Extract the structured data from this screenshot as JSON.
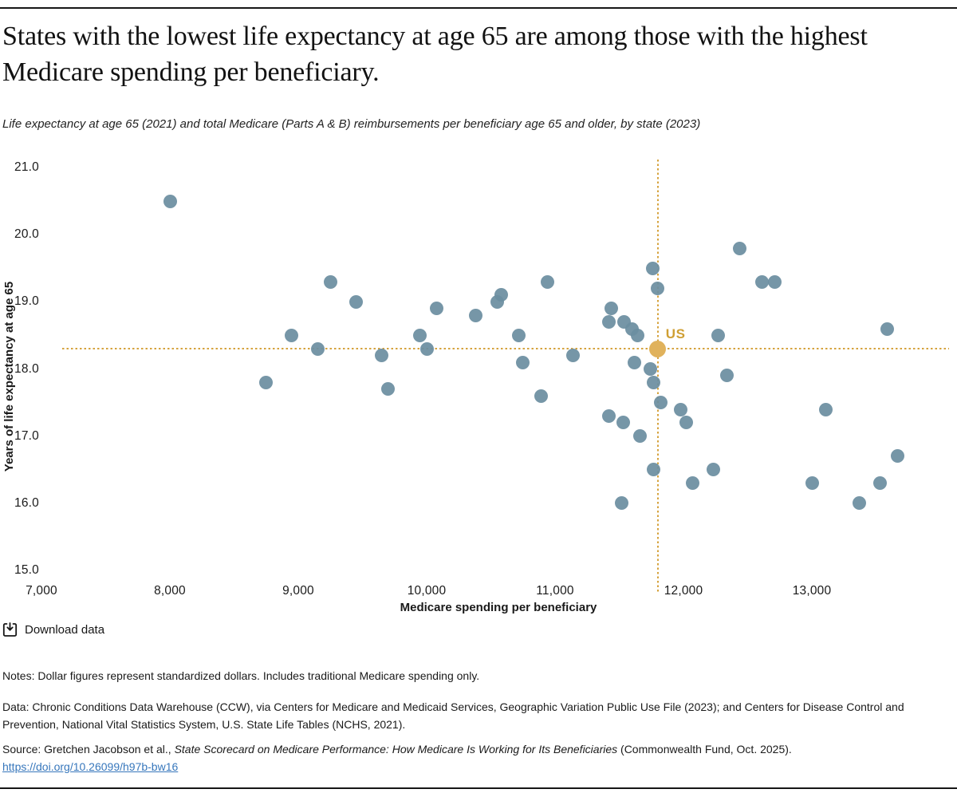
{
  "header": {
    "title": "States with the lowest life expectancy at age 65 are among those with the highest Medicare spending per beneficiary.",
    "subtitle": "Life expectancy at age 65 (2021) and total Medicare (Parts A & B) reimbursements per beneficiary age 65 and older, by state (2023)"
  },
  "chart_data": {
    "type": "scatter",
    "title": "States with the lowest life expectancy at age 65 are among those with the highest Medicare spending per beneficiary.",
    "xlabel": "Medicare spending per beneficiary",
    "ylabel": "Years of life expectancy at age 65",
    "xlim": [
      7000,
      14000
    ],
    "ylim": [
      15.0,
      21.0
    ],
    "grid": false,
    "x_ticks": [
      7000,
      8000,
      9000,
      10000,
      11000,
      12000,
      13000
    ],
    "x_tick_labels": [
      "7,000",
      "8,000",
      "9,000",
      "10,000",
      "11,000",
      "12,000",
      "13,000"
    ],
    "y_ticks": [
      15,
      16,
      17,
      18,
      19,
      20,
      21
    ],
    "y_tick_labels": [
      "15.0",
      "16.0",
      "17.0",
      "18.0",
      "19.0",
      "20.0",
      "21.0"
    ],
    "series_name": "States",
    "points": [
      [
        8000,
        20.5
      ],
      [
        8750,
        17.8
      ],
      [
        8950,
        18.5
      ],
      [
        9150,
        18.3
      ],
      [
        9250,
        19.3
      ],
      [
        9450,
        19.0
      ],
      [
        9650,
        18.2
      ],
      [
        9700,
        17.7
      ],
      [
        9950,
        18.5
      ],
      [
        10000,
        18.3
      ],
      [
        10080,
        18.9
      ],
      [
        10380,
        18.8
      ],
      [
        10550,
        19.0
      ],
      [
        10580,
        19.1
      ],
      [
        10720,
        18.5
      ],
      [
        10750,
        18.1
      ],
      [
        10890,
        17.6
      ],
      [
        10940,
        19.3
      ],
      [
        11140,
        18.2
      ],
      [
        11420,
        18.7
      ],
      [
        11420,
        17.3
      ],
      [
        11440,
        18.9
      ],
      [
        11520,
        16.0
      ],
      [
        11530,
        17.2
      ],
      [
        11540,
        18.7
      ],
      [
        11600,
        18.6
      ],
      [
        11620,
        18.1
      ],
      [
        11640,
        18.5
      ],
      [
        11660,
        17.0
      ],
      [
        11740,
        18.0
      ],
      [
        11760,
        19.5
      ],
      [
        11770,
        17.8
      ],
      [
        11770,
        16.5
      ],
      [
        11800,
        19.2
      ],
      [
        11820,
        17.5
      ],
      [
        11980,
        17.4
      ],
      [
        12020,
        17.2
      ],
      [
        12070,
        16.3
      ],
      [
        12230,
        16.5
      ],
      [
        12270,
        18.5
      ],
      [
        12340,
        17.9
      ],
      [
        12440,
        19.8
      ],
      [
        12610,
        19.3
      ],
      [
        12710,
        19.3
      ],
      [
        13000,
        16.3
      ],
      [
        13110,
        17.4
      ],
      [
        13370,
        16.0
      ],
      [
        13530,
        16.3
      ],
      [
        13590,
        18.6
      ],
      [
        13670,
        16.7
      ]
    ],
    "us_reference": {
      "label": "US",
      "x": 11800,
      "y": 18.3
    },
    "colors": {
      "point": "#6c8ea0",
      "us_marker": "#e0b25c",
      "reference_line": "#d6a33e",
      "us_label": "#cf9f33"
    },
    "legend_position": "none"
  },
  "footer": {
    "download_label": "Download data",
    "notes": "Notes: Dollar figures represent standardized dollars. Includes traditional Medicare spending only.",
    "data_note": "Data: Chronic Conditions Data Warehouse (CCW), via Centers for Medicare and Medicaid Services, Geographic Variation Public Use File (2023); and Centers for Disease Control and Prevention, National Vital Statistics System, U.S. State Life Tables (NCHS, 2021).",
    "source_prefix": "Source: Gretchen Jacobson et al., ",
    "source_title_italic": "State Scorecard on Medicare Performance: How Medicare Is Working for Its Beneficiaries",
    "source_suffix": " (Commonwealth Fund, Oct. 2025).",
    "link": "https://doi.org/10.26099/h97b-bw16"
  }
}
